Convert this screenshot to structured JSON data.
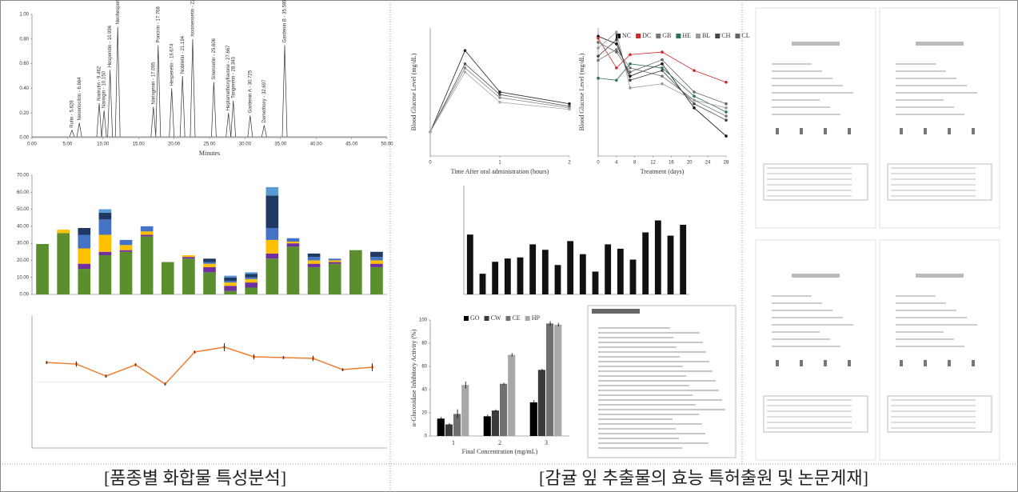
{
  "captions": [
    "[품종별 화합물 특성분석]",
    "[감귤 잎 추출물의 효능 특허출원 및 논문게재]"
  ],
  "chart_data": [
    {
      "type": "area",
      "xlabel": "Minutes",
      "xlim": [
        0,
        50
      ],
      "ylim": [
        0,
        1
      ],
      "xticks": [
        {
          "value": 0,
          "label": "0.00"
        },
        {
          "value": 5,
          "label": "5.00"
        },
        {
          "value": 10,
          "label": "10.00"
        },
        {
          "value": 15,
          "label": "15.00"
        },
        {
          "value": 20,
          "label": "20.00"
        },
        {
          "value": 25,
          "label": "25.00"
        },
        {
          "value": 30,
          "label": "30.00"
        },
        {
          "value": 35,
          "label": "35.00"
        },
        {
          "value": 40,
          "label": "40.00"
        },
        {
          "value": 45,
          "label": "45.00"
        },
        {
          "value": 50,
          "label": "50.00"
        }
      ],
      "yticks": [
        {
          "value": 0,
          "label": "0.00"
        },
        {
          "value": 0.2,
          "label": "0.20"
        },
        {
          "value": 0.4,
          "label": "0.40"
        },
        {
          "value": 0.6,
          "label": "0.60"
        },
        {
          "value": 0.8,
          "label": "0.80"
        },
        {
          "value": 1,
          "label": "1.00"
        }
      ],
      "color": "#333333",
      "peaks": [
        {
          "label": "Rutin - 5.628",
          "x": 5.628,
          "height": 0.06
        },
        {
          "label": "Neoeriocitrin - 6.664",
          "x": 6.664,
          "height": 0.12
        },
        {
          "label": "Narirutin - 9.462",
          "x": 9.462,
          "height": 0.28
        },
        {
          "label": "Naringin - 10.150",
          "x": 10.15,
          "height": 0.22
        },
        {
          "label": "Hesperidin - 10.996",
          "x": 10.996,
          "height": 0.55
        },
        {
          "label": "Neohesperidin - 12.072",
          "x": 12.072,
          "height": 0.9
        },
        {
          "label": "Naringenin - 17.095",
          "x": 17.095,
          "height": 0.25
        },
        {
          "label": "Poncirin - 17.768",
          "x": 17.768,
          "height": 0.75
        },
        {
          "label": "Hesperetin - 19.674",
          "x": 19.674,
          "height": 0.4
        },
        {
          "label": "Nobiletin - 21.194",
          "x": 21.194,
          "height": 0.5
        },
        {
          "label": "Isosinensetin - 22.630",
          "x": 22.63,
          "height": 0.8
        },
        {
          "label": "Sinensetin - 25.606",
          "x": 25.606,
          "height": 0.45
        },
        {
          "label": "Heptamethoxyflavone - 27.667",
          "x": 27.667,
          "height": 0.2
        },
        {
          "label": "Tangeretin - 28.343",
          "x": 28.343,
          "height": 0.3
        },
        {
          "label": "Gardenin A - 30.725",
          "x": 30.725,
          "height": 0.18
        },
        {
          "label": "Demethoxy - 32.697",
          "x": 32.697,
          "height": 0.1
        },
        {
          "label": "Gardenin B - 35.589",
          "x": 35.589,
          "height": 0.75
        }
      ]
    },
    {
      "type": "bar",
      "stacked": true,
      "grid": false,
      "ylim": [
        0,
        70
      ],
      "yticks": [
        {
          "value": 0,
          "label": "0.00"
        },
        {
          "value": 10,
          "label": "10.00"
        },
        {
          "value": 20,
          "label": "20.00"
        },
        {
          "value": 30,
          "label": "30.00"
        },
        {
          "value": 40,
          "label": "40.00"
        },
        {
          "value": 50,
          "label": "50.00"
        },
        {
          "value": 60,
          "label": "60.00"
        },
        {
          "value": 70,
          "label": "70.00"
        }
      ],
      "categories": [
        null,
        null,
        null,
        null,
        null,
        null,
        null,
        null,
        null,
        null,
        null,
        null,
        null,
        null,
        null,
        null,
        null
      ],
      "series": [
        {
          "color": "#5b8f2d",
          "values": [
            29.6,
            36,
            15,
            23,
            25,
            34,
            19,
            21,
            13,
            2,
            4,
            21,
            28,
            16,
            18,
            26,
            16
          ]
        },
        {
          "color": "#7030a0",
          "values": [
            0,
            0,
            3,
            2,
            1,
            1,
            0,
            1,
            3,
            3,
            3,
            3,
            2,
            2,
            1,
            0,
            2
          ]
        },
        {
          "color": "#ffc000",
          "values": [
            0,
            2,
            9,
            10,
            3,
            2,
            0,
            1,
            2,
            2,
            2,
            8,
            1,
            2,
            1,
            0,
            2
          ]
        },
        {
          "color": "#4472c4",
          "values": [
            0,
            0,
            8,
            9,
            3,
            3,
            0,
            0,
            1,
            1,
            1,
            7,
            2,
            2,
            1,
            0,
            2
          ]
        },
        {
          "color": "#1f3864",
          "values": [
            0,
            0,
            4,
            4,
            0,
            0,
            0,
            0,
            2,
            2,
            2,
            19,
            0,
            2,
            0,
            0,
            3
          ]
        },
        {
          "color": "#5b9bd5",
          "values": [
            0,
            0,
            0,
            2,
            0,
            0,
            0,
            0,
            0,
            1,
            1,
            5,
            0,
            0,
            0,
            0,
            0
          ]
        }
      ]
    },
    {
      "type": "line",
      "grid": true,
      "ylim": [
        0,
        100
      ],
      "categories": [
        null,
        null,
        null,
        null,
        null,
        null,
        null,
        null,
        null,
        null,
        null,
        null
      ],
      "series": [
        {
          "color": "#ed7d31",
          "values": [
            64.8,
            63.6,
            54.5,
            63,
            48.5,
            72.7,
            76.4,
            69.1,
            68.5,
            67.9,
            59.4,
            61.2
          ],
          "errors": [
            1,
            2,
            1,
            1,
            1,
            1,
            3,
            2,
            1,
            2,
            1,
            3
          ]
        }
      ]
    },
    {
      "type": "line",
      "xlabel": "Time After oral administration (hours)",
      "ylabel": "Blood Glucose Level (mg/dL)",
      "xlim": [
        0,
        2
      ],
      "ylim": [
        0,
        250
      ],
      "xticks": [
        0,
        1,
        2
      ],
      "x": [
        0,
        0.5,
        1,
        2
      ],
      "series": [
        {
          "color": "#222222",
          "values": [
            47,
            206,
            125,
            102
          ]
        },
        {
          "color": "#555555",
          "values": [
            47,
            180,
            120,
            97
          ]
        },
        {
          "color": "#888888",
          "values": [
            47,
            172,
            114,
            94
          ]
        },
        {
          "color": "#aaaaaa",
          "values": [
            47,
            164,
            105,
            91
          ]
        }
      ]
    },
    {
      "type": "line",
      "xlabel": "Treatment (days)",
      "ylabel": "Blood Glucose Level (mg/dL)",
      "legend": "top",
      "xlim": [
        0,
        28
      ],
      "ylim": [
        0,
        250
      ],
      "xticks": [
        0,
        4,
        8,
        12,
        16,
        20,
        24,
        28
      ],
      "x": [
        0,
        4,
        7,
        14,
        21,
        28
      ],
      "series": [
        {
          "name": "NC",
          "color": "#111111",
          "values": [
            234,
            219,
            156,
            180,
            94,
            39
          ]
        },
        {
          "name": "DC",
          "color": "#d62728",
          "values": [
            230,
            172,
            198,
            203,
            167,
            144
          ]
        },
        {
          "name": "GB",
          "color": "#777777",
          "values": [
            187,
            208,
            172,
            156,
            109,
            78
          ]
        },
        {
          "name": "HE",
          "color": "#2f6f5f",
          "values": [
            152,
            148,
            180,
            172,
            117,
            86
          ]
        },
        {
          "name": "BL",
          "color": "#999999",
          "values": [
            211,
            242,
            133,
            141,
            109,
            94
          ]
        },
        {
          "name": "CH",
          "color": "#444444",
          "values": [
            195,
            227,
            148,
            167,
            102,
            70
          ]
        },
        {
          "name": "CL",
          "color": "#666666",
          "values": [
            222,
            203,
            164,
            188,
            125,
            102
          ]
        }
      ]
    },
    {
      "type": "bar",
      "ylim": [
        0,
        100
      ],
      "color": "#111111",
      "categories": [
        null,
        null,
        null,
        null,
        null,
        null,
        null,
        null,
        null,
        null,
        null,
        null,
        null,
        null,
        null,
        null,
        null,
        null
      ],
      "values": [
        55,
        19,
        30,
        33,
        34,
        46,
        41,
        27,
        49,
        37,
        21,
        46,
        42,
        32,
        57,
        68,
        54,
        64
      ]
    },
    {
      "type": "bar",
      "xlabel": "Final Concentration (mg/mL)",
      "ylabel": "α-Glucosidase Inhibitory Activity (%)",
      "legend": "top",
      "ylim": [
        0,
        100
      ],
      "yticks": [
        0,
        20,
        40,
        60,
        80,
        100
      ],
      "categories": [
        "1",
        "2",
        "3"
      ],
      "series": [
        {
          "name": "GO",
          "color": "#000000",
          "values": [
            15,
            17,
            29
          ],
          "errors": [
            1.5,
            1.5,
            2
          ]
        },
        {
          "name": "CW",
          "color": "#3a3a3a",
          "values": [
            10,
            22,
            57
          ],
          "errors": [
            1,
            1,
            1
          ]
        },
        {
          "name": "CE",
          "color": "#707070",
          "values": [
            19,
            45,
            97
          ],
          "errors": [
            4,
            1,
            2
          ]
        },
        {
          "name": "HP",
          "color": "#a8a8a8",
          "values": [
            44,
            70,
            96
          ],
          "errors": [
            3,
            1.5,
            1.5
          ]
        }
      ]
    }
  ]
}
